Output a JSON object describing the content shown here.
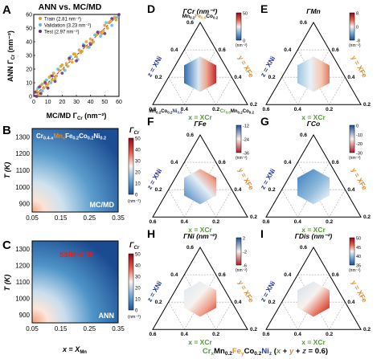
{
  "panels": {
    "A": {
      "letter": "A",
      "title": "ANN vs. MC/MD",
      "ylabel": "ANN Γ",
      "ylabel_sub": "Cr",
      "ylabel_unit": " (nm⁻²)",
      "xlabel": "MC/MD Γ",
      "xlabel_sub": "Cr",
      "xlabel_unit": " (nm⁻²)",
      "xticks": [
        "0",
        "10",
        "20",
        "30",
        "40",
        "50",
        "60"
      ],
      "yticks": [
        "0",
        "10",
        "20",
        "30",
        "40",
        "50",
        "60"
      ],
      "legend": [
        {
          "label": "Train (2.81 nm⁻²)",
          "color": "#d4a02a"
        },
        {
          "label": "Validation (3.23 nm⁻²)",
          "color": "#5fb5e0"
        },
        {
          "label": "Test (2.97 nm⁻²)",
          "color": "#6a2b7e"
        }
      ]
    },
    "B": {
      "letter": "B",
      "composition": "Cr0.4-xMnxFe0.2Co0.2Ni0.2",
      "method": "MC/MD",
      "ylabel": "T (K)",
      "yticks": [
        "1300",
        "1200",
        "1100",
        "1000",
        "900"
      ],
      "xticks": [
        "0.05",
        "0.15",
        "0.25",
        "0.35"
      ],
      "cbar_title": "ΓCr",
      "cbar_ticks": [
        "50",
        "40",
        "30",
        "20",
        "10",
        "0"
      ],
      "cbar_unit": "(nm⁻²)"
    },
    "C": {
      "letter": "C",
      "ssim": "SSIM=0.88",
      "method": "ANN",
      "ylabel": "T (K)",
      "yticks": [
        "1300",
        "1200",
        "1100",
        "1000",
        "900"
      ],
      "xticks": [
        "0.05",
        "0.15",
        "0.25",
        "0.35"
      ],
      "xlabel": "x = XMn",
      "cbar_title": "ΓCr",
      "cbar_ticks": [
        "50",
        "40",
        "30",
        "20",
        "10",
        "0"
      ],
      "cbar_unit": "(nm⁻²)"
    },
    "D": {
      "letter": "D",
      "title": "ΓCr (nm⁻²)",
      "cbar_ticks": [
        "50",
        "0"
      ],
      "cbar_unit": "(nm⁻²)",
      "top_label": "Mn0.2Fe0.2Co0.2",
      "left_label": "Mn0.2Co0.2Ni0.6",
      "right_label": "Cr0.6Mn0.2Co0.2"
    },
    "E": {
      "letter": "E",
      "title": "ΓMn",
      "cbar_ticks": [
        "8",
        "0",
        "-8"
      ],
      "cbar_unit": "(nm⁻²)"
    },
    "F": {
      "letter": "F",
      "title": "ΓFe",
      "cbar_ticks": [
        "-12",
        "-24",
        "-36"
      ],
      "cbar_unit": "(nm⁻²)"
    },
    "G": {
      "letter": "G",
      "title": "ΓCo",
      "cbar_ticks": [
        "0",
        "-10",
        "-20",
        "-30"
      ],
      "cbar_unit": "(nm⁻²)"
    },
    "H": {
      "letter": "H",
      "title": "ΓNi (nm⁻²)",
      "cbar_ticks": [
        "2",
        "-2",
        "-6"
      ],
      "cbar_unit": "(nm⁻²)"
    },
    "I": {
      "letter": "I",
      "title": "ΓDis (nm⁻²)",
      "cbar_ticks": [
        "50",
        "45",
        "40",
        "35"
      ],
      "cbar_unit": "(nm⁻²)"
    }
  },
  "ternary": {
    "axis_ticks": [
      "0.2",
      "0.4",
      "0.6"
    ],
    "x_axis_label": "x = XCr",
    "y_axis_label": "y = XFe",
    "z_axis_label": "z = XNi",
    "bottom_caption": "CrxMn0.2FeyCo0.2Niz (x + y + z = 0.6)"
  },
  "chart_data": [
    {
      "type": "scatter",
      "panel": "A",
      "title": "ANN vs. MC/MD",
      "xlabel": "MC/MD ΓCr (nm⁻²)",
      "ylabel": "ANN ΓCr (nm⁻²)",
      "xlim": [
        0,
        60
      ],
      "ylim": [
        0,
        60
      ],
      "series": [
        {
          "name": "Train (2.81 nm⁻²)",
          "x": [
            2,
            4,
            5,
            7,
            8,
            10,
            11,
            13,
            14,
            16,
            18,
            19,
            21,
            23,
            25,
            27,
            28,
            30,
            32,
            34,
            36,
            38,
            40,
            42,
            44,
            46,
            48,
            50,
            52,
            54,
            56,
            58,
            3,
            6,
            9,
            12,
            15,
            20,
            24,
            29,
            33,
            37,
            41,
            45,
            49,
            53,
            57
          ],
          "y": [
            4,
            3,
            8,
            6,
            11,
            9,
            14,
            12,
            17,
            15,
            19,
            22,
            20,
            24,
            27,
            25,
            31,
            29,
            34,
            33,
            37,
            36,
            42,
            40,
            45,
            47,
            46,
            52,
            50,
            55,
            57,
            56,
            1,
            9,
            7,
            15,
            13,
            23,
            22,
            31,
            32,
            40,
            39,
            47,
            48,
            54,
            58
          ]
        },
        {
          "name": "Validation (3.23 nm⁻²)",
          "x": [
            3,
            6,
            9,
            12,
            17,
            22,
            26,
            31,
            35,
            39,
            43,
            47,
            51,
            55,
            59
          ],
          "y": [
            6,
            4,
            12,
            10,
            20,
            19,
            29,
            27,
            38,
            36,
            45,
            44,
            54,
            52,
            58
          ]
        },
        {
          "name": "Test (2.97 nm⁻²)",
          "x": [
            1,
            2,
            4,
            5,
            8,
            10,
            13,
            15,
            20,
            25,
            30,
            35,
            40,
            45,
            50,
            55,
            60
          ],
          "y": [
            3,
            0,
            7,
            2,
            10,
            6,
            15,
            11,
            17,
            28,
            26,
            37,
            38,
            47,
            46,
            57,
            62
          ]
        }
      ]
    },
    {
      "type": "heatmap",
      "panel": "B",
      "title": "Cr0.4-xMnxFe0.2Co0.2Ni0.2",
      "xlabel": "x = XMn",
      "ylabel": "T (K)",
      "xlim": [
        0.05,
        0.35
      ],
      "ylim": [
        900,
        1300
      ],
      "zlim": [
        0,
        50
      ],
      "description_values": {
        "x": [
          0.05,
          0.15,
          0.25,
          0.35
        ],
        "T": [
          900,
          1000,
          1100,
          1200,
          1300
        ],
        "z": [
          [
            50,
            32,
            20,
            12
          ],
          [
            38,
            25,
            16,
            10
          ],
          [
            28,
            20,
            13,
            8
          ],
          [
            22,
            16,
            10,
            6
          ],
          [
            18,
            13,
            8,
            5
          ]
        ]
      }
    },
    {
      "type": "heatmap",
      "panel": "C",
      "title": "ANN",
      "xlabel": "x = XMn",
      "ylabel": "T (K)",
      "xlim": [
        0.05,
        0.35
      ],
      "ylim": [
        900,
        1300
      ],
      "zlim": [
        0,
        50
      ],
      "description_values": {
        "x": [
          0.05,
          0.15,
          0.25,
          0.35
        ],
        "T": [
          900,
          1000,
          1100,
          1200,
          1300
        ],
        "z": [
          [
            48,
            33,
            21,
            13
          ],
          [
            36,
            26,
            17,
            10
          ],
          [
            27,
            20,
            13,
            8
          ],
          [
            21,
            16,
            10,
            6
          ],
          [
            17,
            13,
            8,
            5
          ]
        ]
      }
    }
  ],
  "colors": {
    "cbar_high": "#b2182b",
    "cbar_mid": "#f7f7f7",
    "cbar_low": "#2166ac",
    "mnx_orange": "#e08a2e",
    "axis_green": "#5a9a3a",
    "axis_blue": "#2a3a9a",
    "axis_orange": "#e08a2e",
    "ssim_red": "#e02020"
  }
}
